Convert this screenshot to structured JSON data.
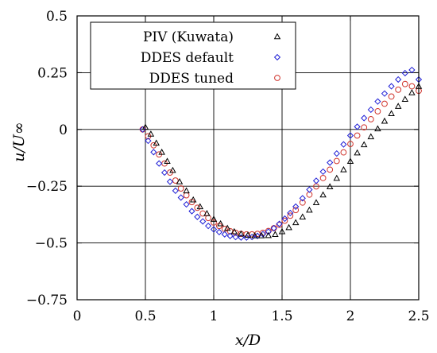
{
  "chart_data": {
    "type": "scatter",
    "xlabel": "x/D",
    "ylabel": "u/U∞",
    "xlim": [
      0,
      2.5
    ],
    "ylim": [
      -0.75,
      0.5
    ],
    "x_ticks": [
      0,
      0.5,
      1,
      1.5,
      2,
      2.5
    ],
    "x_tick_labels": [
      "0",
      "0.5",
      "1",
      "1.5",
      "2",
      "2.5"
    ],
    "y_ticks": [
      0.5,
      0.25,
      0,
      -0.25,
      -0.5,
      -0.75
    ],
    "y_tick_labels": [
      "0.5",
      "0.25",
      "0",
      "−0.25",
      "−0.5",
      "−0.75"
    ],
    "grid": true,
    "legend_position": "top-left",
    "series": [
      {
        "name": "PIV (Kuwata)",
        "marker": "triangle",
        "color": "#000000",
        "x": [
          0.5,
          0.54,
          0.58,
          0.62,
          0.66,
          0.7,
          0.75,
          0.8,
          0.85,
          0.9,
          0.95,
          1.0,
          1.05,
          1.1,
          1.15,
          1.2,
          1.25,
          1.3,
          1.35,
          1.4,
          1.45,
          1.5,
          1.55,
          1.6,
          1.65,
          1.7,
          1.75,
          1.8,
          1.85,
          1.9,
          1.95,
          2.0,
          2.05,
          2.1,
          2.15,
          2.2,
          2.25,
          2.3,
          2.35,
          2.4,
          2.45,
          2.5
        ],
        "y": [
          0.01,
          -0.02,
          -0.06,
          -0.1,
          -0.14,
          -0.18,
          -0.23,
          -0.27,
          -0.31,
          -0.34,
          -0.37,
          -0.395,
          -0.415,
          -0.435,
          -0.45,
          -0.46,
          -0.465,
          -0.468,
          -0.468,
          -0.467,
          -0.462,
          -0.45,
          -0.432,
          -0.41,
          -0.385,
          -0.355,
          -0.322,
          -0.288,
          -0.252,
          -0.215,
          -0.177,
          -0.14,
          -0.103,
          -0.067,
          -0.032,
          0.003,
          0.037,
          0.07,
          0.102,
          0.133,
          0.162,
          0.19
        ]
      },
      {
        "name": "DDES default",
        "marker": "diamond",
        "color": "#1f1fd6",
        "x": [
          0.48,
          0.52,
          0.56,
          0.6,
          0.64,
          0.68,
          0.72,
          0.76,
          0.8,
          0.84,
          0.88,
          0.92,
          0.96,
          1.0,
          1.04,
          1.08,
          1.12,
          1.16,
          1.2,
          1.24,
          1.28,
          1.32,
          1.36,
          1.4,
          1.44,
          1.48,
          1.52,
          1.56,
          1.6,
          1.65,
          1.7,
          1.75,
          1.8,
          1.85,
          1.9,
          1.95,
          2.0,
          2.05,
          2.1,
          2.15,
          2.2,
          2.25,
          2.3,
          2.35,
          2.4,
          2.45,
          2.5
        ],
        "y": [
          0.0,
          -0.05,
          -0.1,
          -0.15,
          -0.19,
          -0.23,
          -0.27,
          -0.3,
          -0.33,
          -0.36,
          -0.385,
          -0.405,
          -0.425,
          -0.44,
          -0.452,
          -0.462,
          -0.469,
          -0.474,
          -0.476,
          -0.476,
          -0.474,
          -0.469,
          -0.461,
          -0.45,
          -0.435,
          -0.416,
          -0.393,
          -0.368,
          -0.34,
          -0.303,
          -0.265,
          -0.226,
          -0.186,
          -0.146,
          -0.106,
          -0.066,
          -0.027,
          0.012,
          0.05,
          0.087,
          0.123,
          0.158,
          0.19,
          0.22,
          0.248,
          0.262,
          0.22
        ]
      },
      {
        "name": "DDES tuned",
        "marker": "circle",
        "color": "#d0342c",
        "x": [
          0.48,
          0.52,
          0.56,
          0.6,
          0.64,
          0.68,
          0.72,
          0.76,
          0.8,
          0.84,
          0.88,
          0.92,
          0.96,
          1.0,
          1.04,
          1.08,
          1.12,
          1.16,
          1.2,
          1.24,
          1.28,
          1.32,
          1.36,
          1.4,
          1.44,
          1.48,
          1.52,
          1.56,
          1.6,
          1.65,
          1.7,
          1.75,
          1.8,
          1.85,
          1.9,
          1.95,
          2.0,
          2.05,
          2.1,
          2.15,
          2.2,
          2.25,
          2.3,
          2.35,
          2.4,
          2.45,
          2.5
        ],
        "y": [
          0.0,
          -0.03,
          -0.07,
          -0.11,
          -0.15,
          -0.19,
          -0.225,
          -0.26,
          -0.29,
          -0.32,
          -0.345,
          -0.37,
          -0.39,
          -0.41,
          -0.425,
          -0.438,
          -0.448,
          -0.455,
          -0.46,
          -0.462,
          -0.462,
          -0.46,
          -0.455,
          -0.447,
          -0.435,
          -0.42,
          -0.402,
          -0.38,
          -0.355,
          -0.322,
          -0.287,
          -0.251,
          -0.214,
          -0.177,
          -0.139,
          -0.101,
          -0.064,
          -0.027,
          0.009,
          0.045,
          0.08,
          0.113,
          0.145,
          0.175,
          0.2,
          0.19,
          0.17
        ]
      }
    ]
  }
}
